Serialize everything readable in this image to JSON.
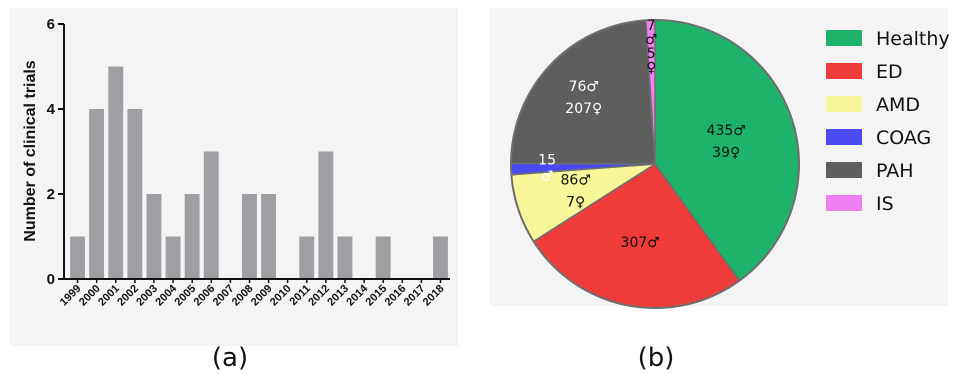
{
  "panels": {
    "a": "(a)",
    "b": "(b)"
  },
  "chart_data": [
    {
      "type": "bar",
      "categories": [
        "1999",
        "2000",
        "2001",
        "2002",
        "2003",
        "2004",
        "2005",
        "2006",
        "2007",
        "2008",
        "2009",
        "2010",
        "2011",
        "2012",
        "2013",
        "2014",
        "2015",
        "2016",
        "2017",
        "2018"
      ],
      "values": [
        1,
        4,
        5,
        4,
        2,
        1,
        2,
        3,
        0,
        2,
        2,
        0,
        1,
        3,
        1,
        0,
        1,
        0,
        0,
        1
      ],
      "ylabel": "Number of clinical trials",
      "ylim": [
        0,
        6
      ],
      "yticks": [
        0,
        2,
        4,
        6
      ],
      "color": "#9e9ea3",
      "grid": false
    },
    {
      "type": "pie",
      "labels": [
        "Healthy",
        "ED",
        "AMD",
        "COAG",
        "PAH",
        "IS"
      ],
      "values": [
        474,
        307,
        93,
        15,
        283,
        12
      ],
      "colors": [
        "#1db36b",
        "#f03b3b",
        "#f7f79a",
        "#4a4af0",
        "#5e5e5e",
        "#f07ff0"
      ],
      "slice_labels": [
        [
          "435♂",
          "39♀"
        ],
        [
          "307♂"
        ],
        [
          "86♂",
          "7♀"
        ],
        [
          "15",
          "♂"
        ],
        [
          "76♂",
          "207♀"
        ],
        [
          "7",
          "♂",
          "5",
          "♀"
        ]
      ],
      "legend_position": "right"
    }
  ]
}
